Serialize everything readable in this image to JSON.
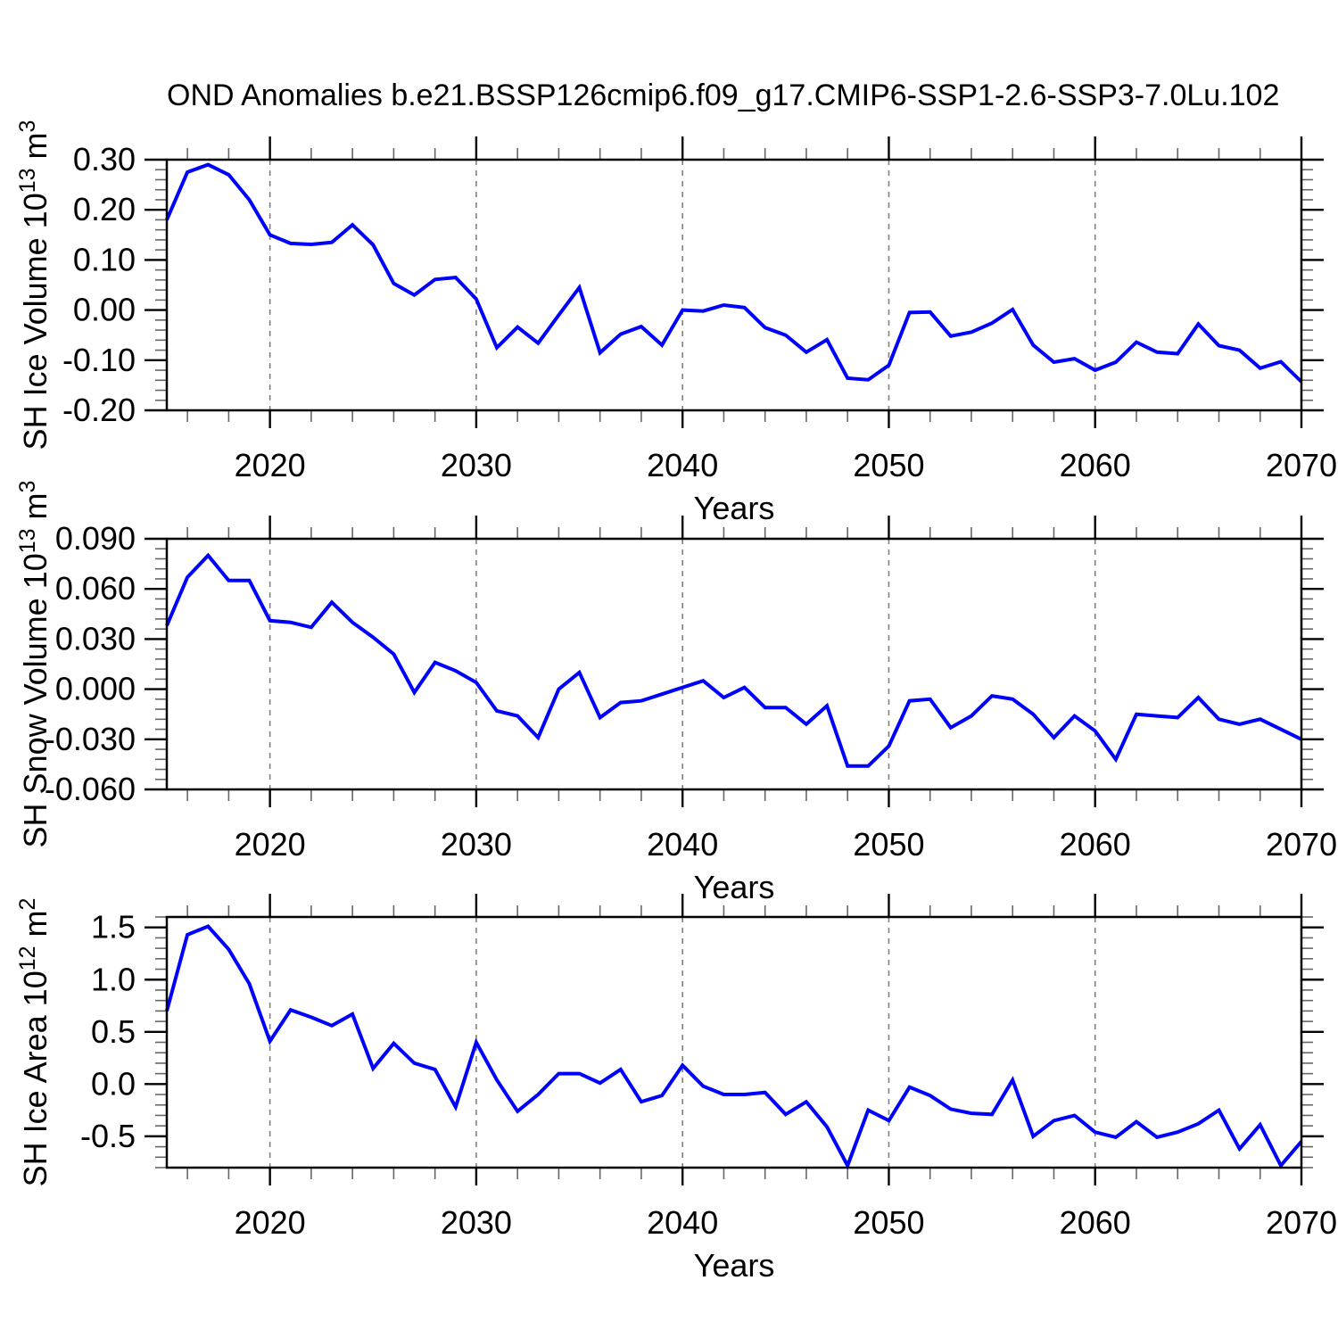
{
  "title": "OND Anomalies b.e21.BSSP126cmip6.f09_g17.CMIP6-SSP1-2.6-SSP3-7.0Lu.102",
  "colors": {
    "line": "#0000ff",
    "grid": "#808080",
    "frame": "#000000",
    "minor_tick": "#666666",
    "text": "#000000",
    "background": "#ffffff"
  },
  "x_axis": {
    "label": "Years",
    "start": 2015,
    "end": 2070,
    "major_ticks": [
      2020,
      2030,
      2040,
      2050,
      2060,
      2070
    ],
    "major_tick_labels": [
      "2020",
      "2030",
      "2040",
      "2050",
      "2060",
      "2070"
    ],
    "minor_step": 2,
    "grid_years": [
      2020,
      2030,
      2040,
      2050,
      2060
    ]
  },
  "years": [
    2015,
    2016,
    2017,
    2018,
    2019,
    2020,
    2021,
    2022,
    2023,
    2024,
    2025,
    2026,
    2027,
    2028,
    2029,
    2030,
    2031,
    2032,
    2033,
    2034,
    2035,
    2036,
    2037,
    2038,
    2039,
    2040,
    2041,
    2042,
    2043,
    2044,
    2045,
    2046,
    2047,
    2048,
    2049,
    2050,
    2051,
    2052,
    2053,
    2054,
    2055,
    2056,
    2057,
    2058,
    2059,
    2060,
    2061,
    2062,
    2063,
    2064,
    2065,
    2066,
    2067,
    2068,
    2069,
    2070
  ],
  "chart_data": [
    {
      "type": "line",
      "name": "sh-ice-volume",
      "ylabel": "SH Ice Volume 10^13 m^3",
      "ylabel_segments": [
        {
          "t": "SH Ice Volume 10"
        },
        {
          "t": "13",
          "sup": true
        },
        {
          "t": " m"
        },
        {
          "t": "3",
          "sup": true
        }
      ],
      "xlabel": "Years",
      "ylim": [
        -0.2,
        0.3
      ],
      "ymajor": [
        0.3,
        0.2,
        0.1,
        0.0,
        -0.1,
        -0.2
      ],
      "ymajor_labels": [
        "0.30",
        "0.20",
        "0.10",
        "0.00",
        "-0.10",
        "-0.20"
      ],
      "yminor_step": 0.02,
      "values": [
        0.18,
        0.275,
        0.29,
        0.27,
        0.22,
        0.15,
        0.133,
        0.131,
        0.135,
        0.17,
        0.13,
        0.053,
        0.03,
        0.061,
        0.065,
        0.022,
        -0.075,
        -0.034,
        -0.066,
        -0.01,
        0.045,
        -0.085,
        -0.048,
        -0.033,
        -0.07,
        0.0,
        -0.002,
        0.01,
        0.005,
        -0.035,
        -0.05,
        -0.084,
        -0.059,
        -0.136,
        -0.139,
        -0.11,
        -0.005,
        -0.004,
        -0.052,
        -0.044,
        -0.026,
        0.001,
        -0.07,
        -0.104,
        -0.097,
        -0.12,
        -0.104,
        -0.064,
        -0.084,
        -0.087,
        -0.028,
        -0.071,
        -0.08,
        -0.116,
        -0.103,
        -0.143
      ]
    },
    {
      "type": "line",
      "name": "sh-snow-volume",
      "ylabel": "SH Snow Volume 10^13 m^3",
      "ylabel_segments": [
        {
          "t": "SH Snow Volume 10"
        },
        {
          "t": "13",
          "sup": true
        },
        {
          "t": " m"
        },
        {
          "t": "3",
          "sup": true
        }
      ],
      "xlabel": "Years",
      "ylim": [
        -0.06,
        0.09
      ],
      "ymajor": [
        0.09,
        0.06,
        0.03,
        0.0,
        -0.03,
        -0.06
      ],
      "ymajor_labels": [
        "0.090",
        "0.060",
        "0.030",
        "0.000",
        "-0.030",
        "-0.060"
      ],
      "yminor_step": 0.006,
      "values": [
        0.038,
        0.067,
        0.08,
        0.065,
        0.065,
        0.041,
        0.04,
        0.037,
        0.052,
        0.04,
        0.031,
        0.021,
        -0.002,
        0.016,
        0.011,
        0.004,
        -0.013,
        -0.016,
        -0.029,
        0.0,
        0.01,
        -0.017,
        -0.008,
        -0.007,
        -0.003,
        0.001,
        0.005,
        -0.005,
        0.001,
        -0.011,
        -0.011,
        -0.021,
        -0.01,
        -0.046,
        -0.046,
        -0.034,
        -0.007,
        -0.006,
        -0.023,
        -0.016,
        -0.004,
        -0.006,
        -0.015,
        -0.029,
        -0.016,
        -0.025,
        -0.042,
        -0.015,
        -0.016,
        -0.017,
        -0.005,
        -0.018,
        -0.021,
        -0.018,
        -0.024,
        -0.03
      ]
    },
    {
      "type": "line",
      "name": "sh-ice-area",
      "ylabel": "SH Ice Area 10^12 m^2",
      "ylabel_segments": [
        {
          "t": "SH Ice Area 10"
        },
        {
          "t": "12",
          "sup": true
        },
        {
          "t": " m"
        },
        {
          "t": "2",
          "sup": true
        }
      ],
      "xlabel": "Years",
      "ylim": [
        -0.8,
        1.6
      ],
      "ymajor": [
        1.5,
        1.0,
        0.5,
        0.0,
        -0.5
      ],
      "ymajor_labels": [
        "1.5",
        "1.0",
        "0.5",
        "0.0",
        "-0.5"
      ],
      "yminor_step": 0.1,
      "values": [
        0.7,
        1.43,
        1.51,
        1.29,
        0.96,
        0.41,
        0.71,
        0.64,
        0.56,
        0.67,
        0.15,
        0.39,
        0.2,
        0.14,
        -0.22,
        0.4,
        0.04,
        -0.26,
        -0.1,
        0.1,
        0.1,
        0.01,
        0.14,
        -0.17,
        -0.11,
        0.18,
        -0.02,
        -0.1,
        -0.1,
        -0.08,
        -0.29,
        -0.17,
        -0.41,
        -0.78,
        -0.25,
        -0.35,
        -0.03,
        -0.11,
        -0.24,
        -0.28,
        -0.29,
        0.04,
        -0.5,
        -0.35,
        -0.3,
        -0.46,
        -0.51,
        -0.36,
        -0.51,
        -0.46,
        -0.38,
        -0.25,
        -0.62,
        -0.39,
        -0.78,
        -0.55
      ]
    }
  ]
}
